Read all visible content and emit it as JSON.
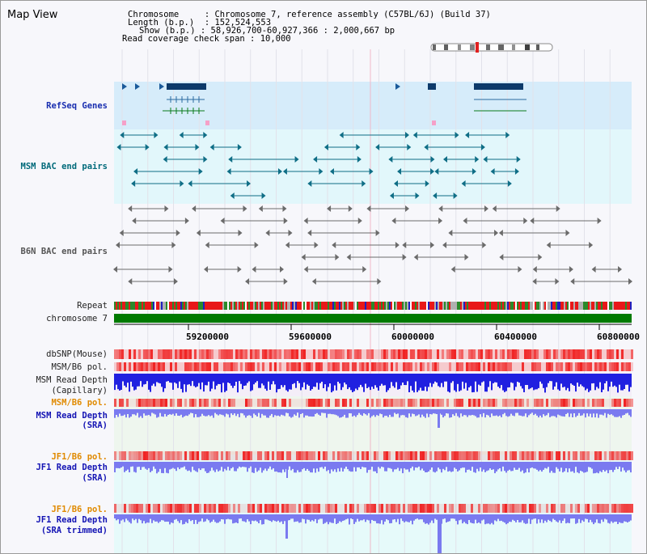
{
  "title": "Map View",
  "info": {
    "chromosome_label": "Chromosome",
    "chromosome_value": "Chromosome 7, reference assembly (C57BL/6J) (Build 37)",
    "length_label": "Length (b.p.)",
    "length_value": "152,524,553",
    "show_label": "Show (b.p.)",
    "show_value": "58,926,700-60,927,366 : 2,000,667 bp",
    "span_label": "Read coverage check span",
    "span_value": "10,000"
  },
  "tracks": {
    "refseq": "RefSeq Genes",
    "msm_bac": "MSM BAC end pairs",
    "b6n_bac": "B6N BAC end pairs",
    "repeat": "Repeat",
    "chromosome": "chromosome 7",
    "dbsnp": "dbSNP(Mouse)",
    "msm_b6_pol": "MSM/B6 pol.",
    "msm_read_cap_1": "MSM Read Depth",
    "msm_read_cap_2": "(Capillary)",
    "msm_b6_pol_2": "MSM/B6 pol.",
    "msm_read_sra_1": "MSM Read Depth",
    "msm_read_sra_2": "(SRA)",
    "jf1_b6_pol": "JF1/B6 pol.",
    "jf1_read_sra_1": "JF1 Read Depth",
    "jf1_read_sra_2": "(SRA)",
    "jf1_b6_pol_2": "JF1/B6 pol.",
    "jf1_read_trim_1": "JF1 Read Depth",
    "jf1_read_trim_2": "(SRA trimmed)"
  },
  "axis_ticks": [
    "59200000",
    "59600000",
    "60000000",
    "60400000",
    "60800000"
  ],
  "colors": {
    "refseq_band": "#d6ecfa",
    "msm_band": "#e2f7fb",
    "gene": "#0d3a6a",
    "msm_pair": "#0f6e86",
    "b6n_pair": "#6b6b6b",
    "chromosome_bar": "#007a00",
    "snp": "#f02020",
    "depth_blue": "#2020e0",
    "depth_light": "#7a7af0",
    "pol_orange_band": "#fbe9e9"
  }
}
